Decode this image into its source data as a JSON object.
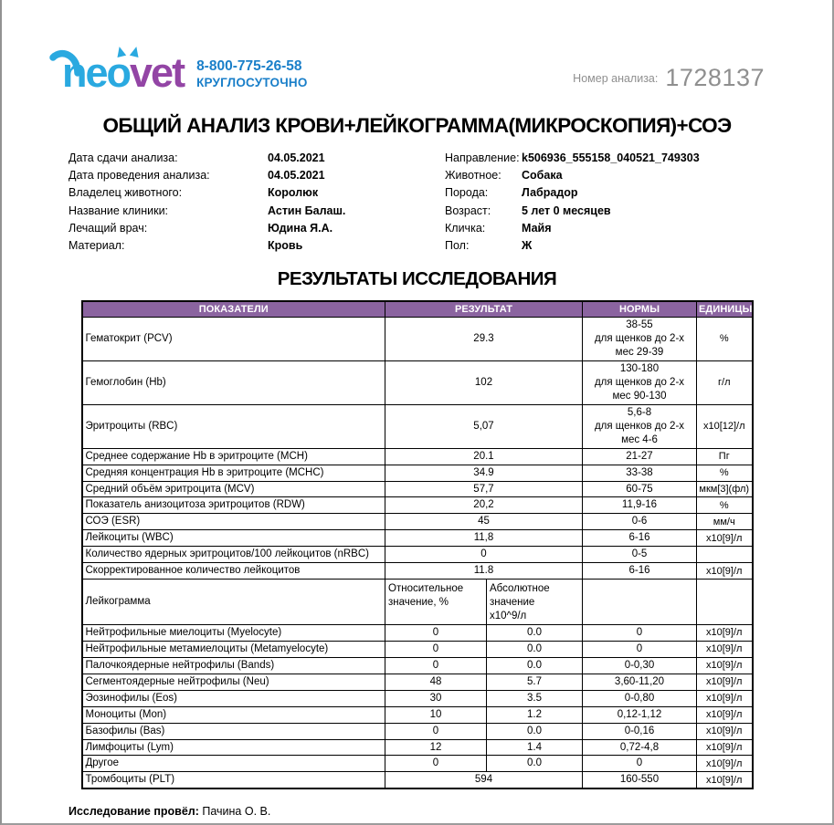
{
  "header": {
    "logo_part_blue": "neo",
    "logo_part_purple": "vet",
    "phone": "8-800-775-26-58",
    "phone_sub": "КРУГЛОСУТОЧНО",
    "analysis_number_label": "Номер анализа:",
    "analysis_number": "1728137"
  },
  "title": "ОБЩИЙ АНАЛИЗ КРОВИ+ЛЕЙКОГРАММА(МИКРОСКОПИЯ)+СОЭ",
  "info": {
    "left": [
      {
        "label": "Дата сдачи анализа:",
        "value": "04.05.2021"
      },
      {
        "label": "Дата проведения анализа:",
        "value": "04.05.2021"
      },
      {
        "label": "Владелец животного:",
        "value": "Королюк"
      },
      {
        "label": "Название клиники:",
        "value": "Астин Балаш."
      },
      {
        "label": "Лечащий врач:",
        "value": "Юдина Я.А."
      },
      {
        "label": "Материал:",
        "value": "Кровь"
      }
    ],
    "right": [
      {
        "label": "Направление:",
        "value": "k506936_555158_040521_749303"
      },
      {
        "label": "Животное:",
        "value": "Собака"
      },
      {
        "label": "Порода:",
        "value": "Лабрадор"
      },
      {
        "label": "Возраст:",
        "value": "5 лет 0 месяцев"
      },
      {
        "label": "Кличка:",
        "value": "Майя"
      },
      {
        "label": "Пол:",
        "value": "Ж"
      }
    ]
  },
  "results_title": "РЕЗУЛЬТАТЫ ИССЛЕДОВАНИЯ",
  "table": {
    "headers": [
      "ПОКАЗАТЕЛИ",
      "РЕЗУЛЬТАТ",
      "НОРМЫ",
      "ЕДИНИЦЫ"
    ],
    "rows": [
      {
        "kind": "span",
        "name": "Гематокрит (PCV)",
        "result": "29.3",
        "norm": "38-55\nдля щенков до 2-х\nмес 29-39",
        "unit": "%"
      },
      {
        "kind": "span",
        "name": "Гемоглобин (Hb)",
        "result": "102",
        "norm": "130-180\nдля щенков до 2-х\nмес 90-130",
        "unit": "г/л"
      },
      {
        "kind": "span",
        "name": "Эритроциты (RBC)",
        "result": "5,07",
        "norm": "5,6-8\nдля щенков до 2-х\nмес 4-6",
        "unit": "x10[12]/л"
      },
      {
        "kind": "span",
        "name": "Среднее содержание Hb в эритроците (MCH)",
        "result": "20.1",
        "norm": "21-27",
        "unit": "Пг"
      },
      {
        "kind": "span",
        "name": "Средняя концентрация Hb в эритроците (MCHC)",
        "result": "34.9",
        "norm": "33-38",
        "unit": "%"
      },
      {
        "kind": "span",
        "name": "Средний объём эритроцита (MCV)",
        "result": "57,7",
        "norm": "60-75",
        "unit": "мкм[3](фл)"
      },
      {
        "kind": "span",
        "name": "Показатель анизоцитоза эритроцитов (RDW)",
        "result": "20,2",
        "norm": "11,9-16",
        "unit": "%"
      },
      {
        "kind": "span",
        "name": "СОЭ (ESR)",
        "result": "45",
        "norm": "0-6",
        "unit": "мм/ч"
      },
      {
        "kind": "span",
        "name": "Лейкоциты (WBC)",
        "result": "11,8",
        "norm": "6-16",
        "unit": "x10[9]/л"
      },
      {
        "kind": "span",
        "name": "Количество ядерных эритроцитов/100 лейкоцитов (nRBC)",
        "result": "0",
        "norm": "0-5",
        "unit": ""
      },
      {
        "kind": "span",
        "name": "Скорректированное количество лейкоцитов",
        "result": "11.8",
        "norm": "6-16",
        "unit": "x10[9]/л"
      },
      {
        "kind": "subheader",
        "name": "Лейкограмма",
        "result": "Относительное\nзначение, %",
        "result2": "Абсолютное\nзначение\nх10^9/л",
        "norm": "",
        "unit": ""
      },
      {
        "kind": "split",
        "name": "Нейтрофильные миелоциты (Myelocyte)",
        "result": "0",
        "result2": "0.0",
        "norm": "0",
        "unit": "x10[9]/л"
      },
      {
        "kind": "split",
        "name": "Нейтрофильные метамиелоциты (Metamyelocyte)",
        "result": "0",
        "result2": "0.0",
        "norm": "0",
        "unit": "x10[9]/л"
      },
      {
        "kind": "split",
        "name": "Палочкоядерные нейтрофилы (Bands)",
        "result": "0",
        "result2": "0.0",
        "norm": "0-0,30",
        "unit": "x10[9]/л"
      },
      {
        "kind": "split",
        "name": "Сегментоядерные нейтрофилы (Neu)",
        "result": "48",
        "result2": "5.7",
        "norm": "3,60-11,20",
        "unit": "x10[9]/л"
      },
      {
        "kind": "split",
        "name": "Эозинофилы (Eos)",
        "result": "30",
        "result2": "3.5",
        "norm": "0-0,80",
        "unit": "x10[9]/л"
      },
      {
        "kind": "split",
        "name": "Моноциты (Mon)",
        "result": "10",
        "result2": "1.2",
        "norm": "0,12-1,12",
        "unit": "x10[9]/л"
      },
      {
        "kind": "split",
        "name": "Базофилы (Bas)",
        "result": "0",
        "result2": "0.0",
        "norm": "0-0,16",
        "unit": "x10[9]/л"
      },
      {
        "kind": "split",
        "name": "Лимфоциты (Lym)",
        "result": "12",
        "result2": "1.4",
        "norm": "0,72-4,8",
        "unit": "x10[9]/л"
      },
      {
        "kind": "split",
        "name": "Другое",
        "result": "0",
        "result2": "0.0",
        "norm": "0",
        "unit": "x10[9]/л"
      },
      {
        "kind": "span",
        "name": "Тромбоциты (PLT)",
        "result": "594",
        "norm": "160-550",
        "unit": "x10[9]/л"
      }
    ]
  },
  "footer": {
    "label": "Исследование провёл:",
    "value": "Пачина О. В."
  },
  "colors": {
    "table_header_purple": "#8b64a0",
    "logo_blue": "#2aa9e0",
    "logo_purple": "#9345a5",
    "phone_blue": "#1a7fc9",
    "analysis_number_gray": "#8f8f8f"
  }
}
